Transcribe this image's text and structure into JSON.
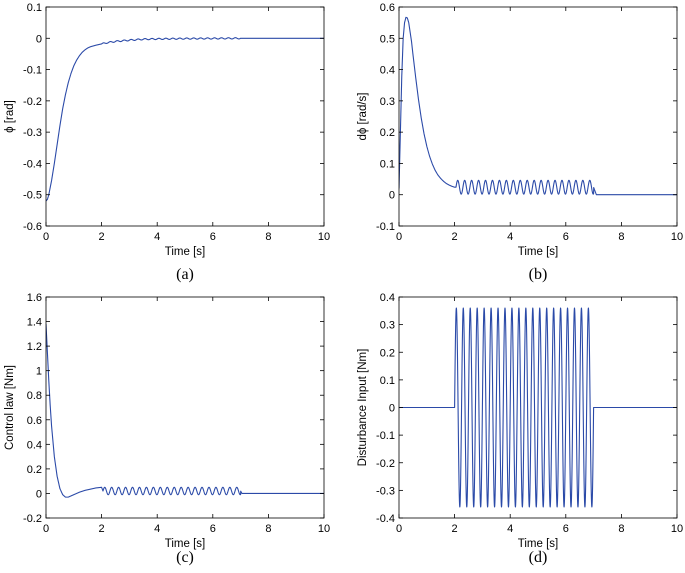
{
  "chart_data": [
    {
      "type": "line",
      "caption": "(a)",
      "xlabel": "Time [s]",
      "ylabel": "ϕ [rad]",
      "xlim": [
        0,
        10
      ],
      "ylim": [
        -0.6,
        0.1
      ],
      "xticks": [
        0,
        2,
        4,
        6,
        8,
        10
      ],
      "yticks": [
        -0.6,
        -0.5,
        -0.4,
        -0.3,
        -0.2,
        -0.1,
        0,
        0.1
      ],
      "ytick_labels": [
        "-0.6",
        "-0.5",
        "-0.4",
        "-0.3",
        "-0.2",
        "-0.1",
        "0",
        "0.1"
      ],
      "grid": false,
      "color": "#2b4aa8",
      "series": [
        {
          "x": [
            0,
            0.05,
            0.1,
            0.2,
            0.3,
            0.4,
            0.5,
            0.6,
            0.7,
            0.8,
            0.9,
            1.0,
            1.1,
            1.2,
            1.3,
            1.4,
            1.5,
            1.6,
            1.8,
            2.0,
            2.2,
            2.5,
            3.0,
            3.5,
            4.0,
            5.0,
            6.0,
            7.0,
            8.0,
            9.0,
            10.0
          ],
          "y": [
            -0.52,
            -0.515,
            -0.5,
            -0.455,
            -0.4,
            -0.34,
            -0.28,
            -0.225,
            -0.18,
            -0.142,
            -0.112,
            -0.088,
            -0.07,
            -0.056,
            -0.045,
            -0.037,
            -0.031,
            -0.027,
            -0.022,
            -0.018,
            -0.014,
            -0.01,
            -0.006,
            -0.003,
            -0.002,
            -0.001,
            -0.0005,
            0,
            0,
            0,
            0
          ],
          "oscillation": {
            "t_start": 2,
            "t_end": 7,
            "frequency_hz": 4,
            "amplitude": 0.002
          }
        }
      ]
    },
    {
      "type": "line",
      "caption": "(b)",
      "xlabel": "Time [s]",
      "ylabel": "dϕ [rad/s]",
      "xlim": [
        0,
        10
      ],
      "ylim": [
        -0.1,
        0.6
      ],
      "xticks": [
        0,
        2,
        4,
        6,
        8,
        10
      ],
      "yticks": [
        -0.1,
        0,
        0.1,
        0.2,
        0.3,
        0.4,
        0.5,
        0.6
      ],
      "ytick_labels": [
        "-0.1",
        "0",
        "0.1",
        "0.2",
        "0.3",
        "0.4",
        "0.5",
        "0.6"
      ],
      "grid": false,
      "color": "#2b4aa8",
      "series": [
        {
          "x": [
            0,
            0.05,
            0.1,
            0.15,
            0.2,
            0.25,
            0.3,
            0.35,
            0.4,
            0.45,
            0.5,
            0.6,
            0.7,
            0.8,
            0.9,
            1.0,
            1.1,
            1.2,
            1.3,
            1.4,
            1.5,
            1.6,
            1.7,
            1.8,
            1.9,
            2.0,
            2.1,
            2.5,
            3.0,
            4.0,
            5.0,
            6.0,
            7.0,
            7.1,
            8.0,
            9.0,
            10.0
          ],
          "y": [
            0.02,
            0.2,
            0.38,
            0.5,
            0.55,
            0.567,
            0.565,
            0.55,
            0.52,
            0.49,
            0.45,
            0.375,
            0.305,
            0.245,
            0.195,
            0.155,
            0.123,
            0.098,
            0.078,
            0.063,
            0.052,
            0.043,
            0.036,
            0.031,
            0.027,
            0.024,
            0.024,
            0.024,
            0.024,
            0.024,
            0.024,
            0.024,
            0.024,
            0,
            0,
            0,
            0
          ],
          "oscillation": {
            "t_start": 2.05,
            "t_end": 7.0,
            "frequency_hz": 4,
            "amplitude": 0.022
          }
        }
      ]
    },
    {
      "type": "line",
      "caption": "(c)",
      "xlabel": "Time [s]",
      "ylabel": "Control law [Nm]",
      "xlim": [
        0,
        10
      ],
      "ylim": [
        -0.2,
        1.6
      ],
      "xticks": [
        0,
        2,
        4,
        6,
        8,
        10
      ],
      "yticks": [
        -0.2,
        0,
        0.2,
        0.4,
        0.6,
        0.8,
        1,
        1.2,
        1.4,
        1.6
      ],
      "ytick_labels": [
        "-0.2",
        "0",
        "0.2",
        "0.4",
        "0.6",
        "0.8",
        "1",
        "1.2",
        "1.4",
        "1.6"
      ],
      "grid": false,
      "color": "#2b4aa8",
      "series": [
        {
          "x": [
            0,
            0.05,
            0.1,
            0.15,
            0.2,
            0.3,
            0.4,
            0.5,
            0.6,
            0.7,
            0.8,
            0.9,
            1.0,
            1.2,
            1.4,
            1.6,
            1.8,
            2.0,
            2.05,
            2.5,
            3.0,
            4.0,
            5.0,
            6.0,
            7.0,
            7.05,
            8.0,
            9.0,
            10.0
          ],
          "y": [
            1.38,
            1.15,
            0.92,
            0.72,
            0.55,
            0.3,
            0.14,
            0.04,
            -0.01,
            -0.03,
            -0.03,
            -0.02,
            -0.01,
            0.01,
            0.025,
            0.035,
            0.045,
            0.05,
            0.02,
            0.02,
            0.02,
            0.02,
            0.02,
            0.02,
            0.02,
            0,
            0,
            0,
            0
          ],
          "oscillation": {
            "t_start": 2.05,
            "t_end": 7.0,
            "frequency_hz": 4,
            "amplitude": 0.03
          }
        }
      ]
    },
    {
      "type": "line",
      "caption": "(d)",
      "xlabel": "Time [s]",
      "ylabel": "Disturbance Input [Nm]",
      "xlim": [
        0,
        10
      ],
      "ylim": [
        -0.4,
        0.4
      ],
      "xticks": [
        0,
        2,
        4,
        6,
        8,
        10
      ],
      "yticks": [
        -0.4,
        -0.3,
        -0.2,
        -0.1,
        0,
        0.1,
        0.2,
        0.3,
        0.4
      ],
      "ytick_labels": [
        "-0.4",
        "-0.3",
        "-0.2",
        "-0.1",
        "0",
        "0.1",
        "0.2",
        "0.3",
        "0.4"
      ],
      "grid": false,
      "color": "#2b4aa8",
      "series": [
        {
          "x": [
            0,
            2.0,
            7.0,
            10.0
          ],
          "y": [
            0,
            0,
            0,
            0
          ],
          "oscillation": {
            "t_start": 2.0,
            "t_end": 7.0,
            "frequency_hz": 4,
            "amplitude": 0.36
          }
        }
      ]
    }
  ]
}
